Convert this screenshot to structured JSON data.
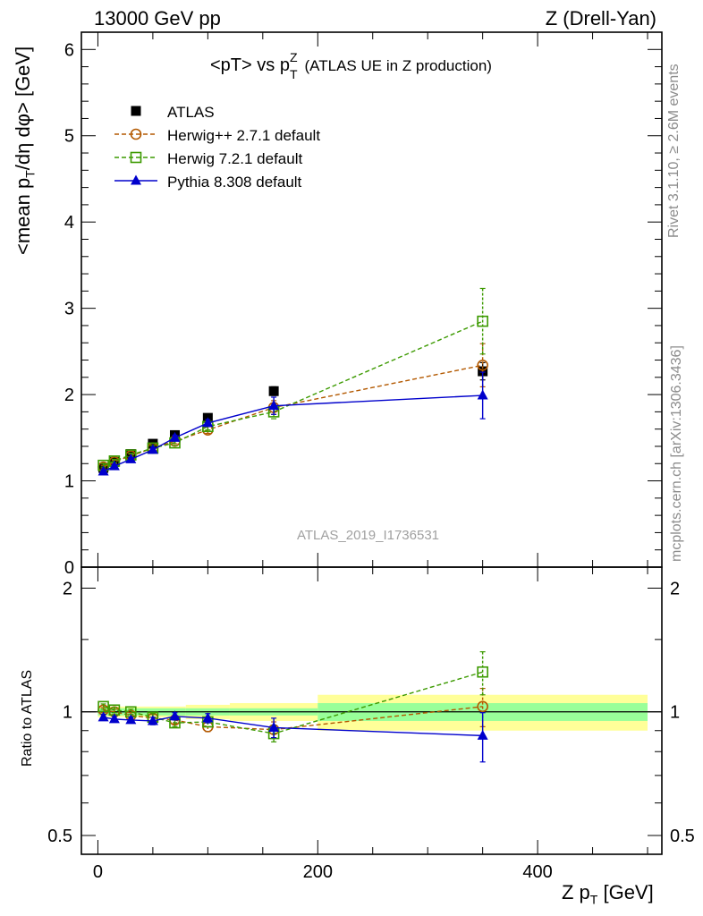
{
  "header": {
    "left": "13000 GeV pp",
    "right": "Z (Drell-Yan)"
  },
  "side_labels": {
    "rivet": "Rivet 3.1.10, ≥ 2.6M events",
    "mcplots": "mcplots.cern.ch [arXiv:1306.3436]"
  },
  "chart_data": {
    "type": "scatter",
    "title_main": "<pT> vs p",
    "title_sup": "Z",
    "title_sub": "T",
    "title_rest": "(ATLAS UE in Z production)",
    "watermark": "ATLAS_2019_I1736531",
    "ylabel": "<mean p_T/dη dφ> [GeV]",
    "ratio_ylabel": "Ratio to ATLAS",
    "xlabel": "Z p_T [GeV]",
    "xlim": [
      -15,
      513
    ],
    "ylim": [
      0,
      6.2
    ],
    "ratio_ylim": [
      0.45,
      2.25
    ],
    "ratio_log": true,
    "x_ticks": [
      "0",
      "200",
      "400"
    ],
    "x_tick_values": [
      0,
      200,
      400
    ],
    "y_ticks": [
      "0",
      "1",
      "2",
      "3",
      "4",
      "5",
      "6"
    ],
    "ratio_ticks": [
      "0.5",
      "1",
      "2"
    ],
    "ratio_tick_values": [
      0.5,
      1,
      2
    ],
    "x": [
      5,
      15,
      30,
      50,
      70,
      100,
      160,
      350
    ],
    "bands": [
      {
        "x": [
          0,
          80
        ],
        "green": 0.02,
        "yellow": 0.03
      },
      {
        "x": [
          80,
          120
        ],
        "green": 0.02,
        "yellow": 0.04
      },
      {
        "x": [
          120,
          200
        ],
        "green": 0.02,
        "yellow": 0.05
      },
      {
        "x": [
          200,
          500
        ],
        "green": 0.05,
        "yellow": 0.1
      }
    ],
    "series": [
      {
        "name": "ATLAS",
        "color": "#000000",
        "marker": "square-filled",
        "line": "none",
        "values": [
          1.15,
          1.22,
          1.31,
          1.43,
          1.53,
          1.73,
          2.04,
          2.27
        ],
        "err": [
          0.02,
          0.02,
          0.02,
          0.02,
          0.03,
          0.03,
          0.05,
          0.1
        ],
        "ratio": [
          1,
          1,
          1,
          1,
          1,
          1,
          1,
          1
        ],
        "ratio_err": [
          0,
          0,
          0,
          0,
          0,
          0,
          0,
          0
        ]
      },
      {
        "name": "Herwig++ 2.7.1 default",
        "color": "#b35900",
        "marker": "circle-open",
        "line": "dashed",
        "values": [
          1.16,
          1.22,
          1.29,
          1.38,
          1.46,
          1.59,
          1.85,
          2.34
        ],
        "err": [
          0.02,
          0.02,
          0.02,
          0.03,
          0.03,
          0.04,
          0.08,
          0.25
        ],
        "ratio": [
          1.01,
          1.0,
          0.98,
          0.965,
          0.955,
          0.92,
          0.905,
          1.03
        ],
        "ratio_err": [
          0.015,
          0.015,
          0.015,
          0.02,
          0.02,
          0.025,
          0.04,
          0.11
        ]
      },
      {
        "name": "Herwig 7.2.1 default",
        "color": "#3c9a00",
        "marker": "square-open",
        "line": "dashed",
        "values": [
          1.18,
          1.23,
          1.3,
          1.38,
          1.44,
          1.63,
          1.8,
          2.85
        ],
        "err": [
          0.02,
          0.02,
          0.02,
          0.03,
          0.03,
          0.04,
          0.08,
          0.38
        ],
        "ratio": [
          1.03,
          1.01,
          1.0,
          0.97,
          0.94,
          0.945,
          0.885,
          1.25
        ],
        "ratio_err": [
          0.015,
          0.015,
          0.015,
          0.02,
          0.02,
          0.025,
          0.04,
          0.15
        ]
      },
      {
        "name": "Pythia 8.308 default",
        "color": "#0000cc",
        "marker": "triangle-filled",
        "line": "solid",
        "values": [
          1.11,
          1.17,
          1.25,
          1.36,
          1.5,
          1.67,
          1.87,
          1.99
        ],
        "err": [
          0.02,
          0.02,
          0.02,
          0.03,
          0.03,
          0.04,
          0.1,
          0.27
        ],
        "ratio": [
          0.97,
          0.96,
          0.955,
          0.95,
          0.975,
          0.965,
          0.915,
          0.875
        ],
        "ratio_err": [
          0.015,
          0.015,
          0.015,
          0.02,
          0.02,
          0.025,
          0.05,
          0.12
        ]
      }
    ]
  }
}
